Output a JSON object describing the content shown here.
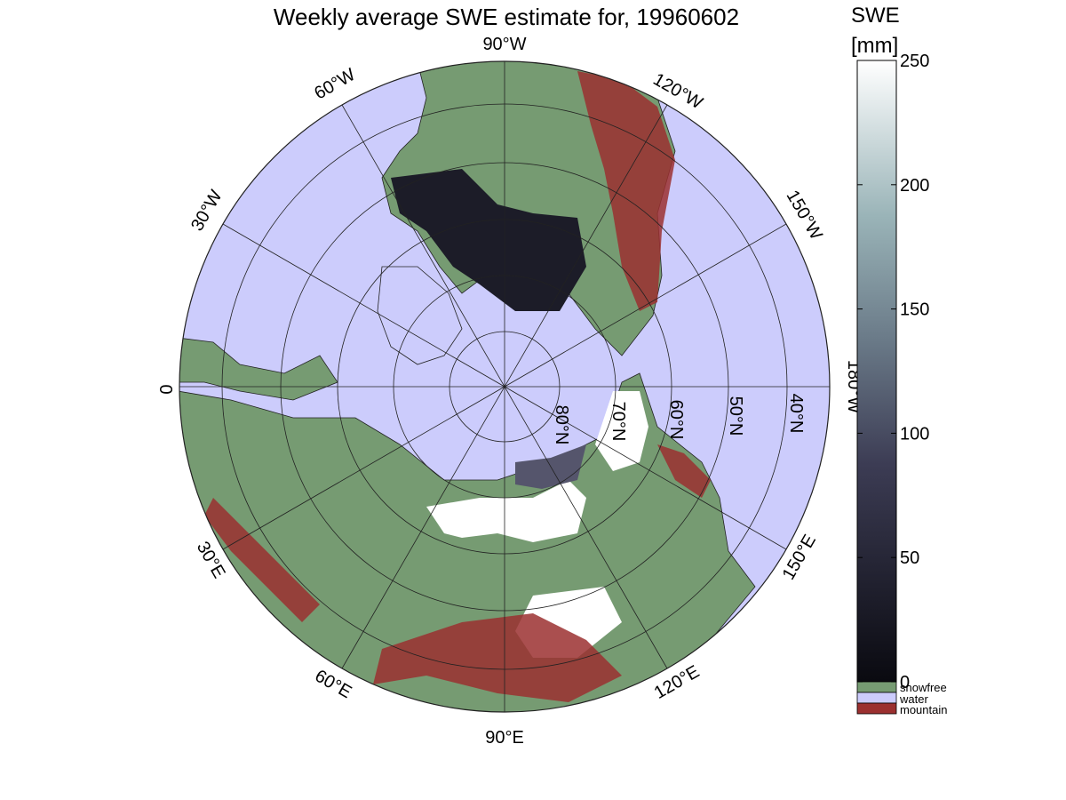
{
  "title": "Weekly average SWE estimate for, 19960602",
  "colorbar": {
    "label_line1": "SWE",
    "label_line2": "[mm]",
    "ticks": [
      "0",
      "50",
      "100",
      "150",
      "200",
      "250"
    ],
    "min": 0,
    "max": 250,
    "categories": [
      {
        "label": "snowfree",
        "color": "#769b72"
      },
      {
        "label": "water",
        "color": "#ccccfc"
      },
      {
        "label": "mountain",
        "color": "#9b3030"
      }
    ]
  },
  "map": {
    "projection": "north-polar-stereographic",
    "longitude_labels": [
      "90°W",
      "120°W",
      "150°W",
      "180°W",
      "150°E",
      "120°E",
      "90°E",
      "60°E",
      "30°E",
      "0",
      "30°W",
      "60°W"
    ],
    "latitude_labels": [
      "80°N",
      "70°N",
      "60°N",
      "50°N",
      "40°N"
    ],
    "colors": {
      "water": "#ccccfc",
      "snowfree": "#769b72",
      "mountain": "#9b3030",
      "snow_deep": "#ffffff",
      "snow_shallow": "#1c1c28"
    }
  }
}
